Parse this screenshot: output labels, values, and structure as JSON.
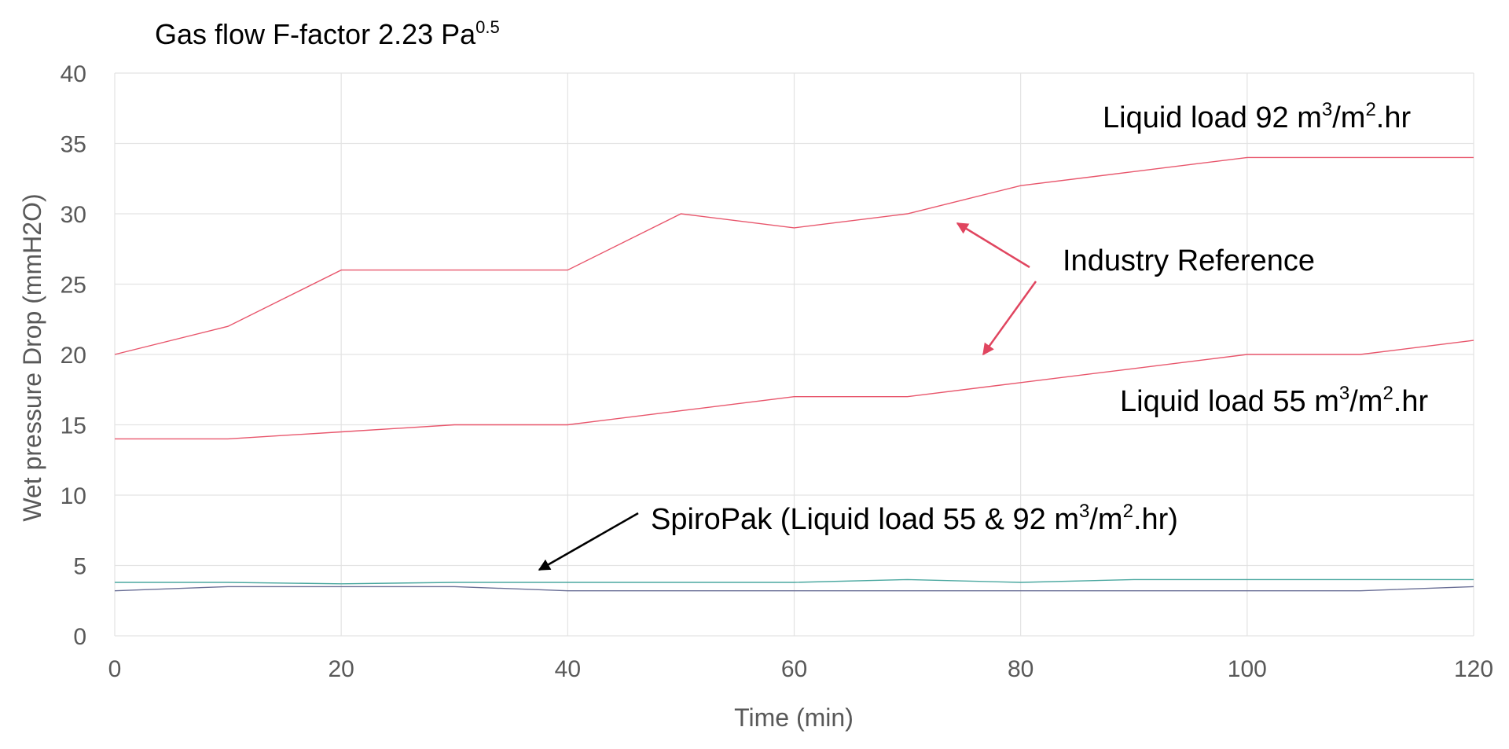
{
  "chart_data": {
    "type": "line",
    "title": "Gas flow F-factor 2.23 Pa",
    "title_sup": "0.5",
    "xlabel": "Time (min)",
    "ylabel": "Wet pressure Drop (mmH2O)",
    "xlim": [
      0,
      120
    ],
    "ylim": [
      0,
      40
    ],
    "x_ticks": [
      "0",
      "20",
      "40",
      "60",
      "80",
      "100",
      "120"
    ],
    "y_ticks": [
      "0",
      "5",
      "10",
      "15",
      "20",
      "25",
      "30",
      "35",
      "40"
    ],
    "grid": true,
    "x": [
      0,
      10,
      20,
      30,
      40,
      50,
      60,
      70,
      80,
      90,
      100,
      110,
      120
    ],
    "series": [
      {
        "values": [
          20,
          22,
          26,
          26,
          26,
          30,
          29,
          30,
          32,
          33,
          34,
          34,
          34
        ],
        "color": "#e8566c"
      },
      {
        "values": [
          14,
          14,
          14.5,
          15,
          15,
          16,
          17,
          17,
          18,
          19,
          20,
          20,
          21
        ],
        "color": "#e8566c"
      },
      {
        "values": [
          3.8,
          3.8,
          3.7,
          3.8,
          3.8,
          3.8,
          3.8,
          4.0,
          3.8,
          4.0,
          4.0,
          4.0,
          4.0
        ],
        "color": "#4ba8a0"
      },
      {
        "values": [
          3.2,
          3.5,
          3.5,
          3.5,
          3.2,
          3.2,
          3.2,
          3.2,
          3.2,
          3.2,
          3.2,
          3.2,
          3.5
        ],
        "color": "#6a6f96"
      }
    ],
    "annotations": {
      "liquid92": {
        "pre": "Liquid load 92 m",
        "sup1": "3",
        "mid": "/m",
        "sup2": "2",
        "post": ".hr"
      },
      "liquid55": {
        "pre": "Liquid load 55 m",
        "sup1": "3",
        "mid": "/m",
        "sup2": "2",
        "post": ".hr"
      },
      "industry": "Industry Reference",
      "spiropak": {
        "pre": "SpiroPak (Liquid load 55 & 92 m",
        "sup1": "3",
        "mid": "/m",
        "sup2": "2",
        "post": ".hr)"
      }
    },
    "arrow_colors": {
      "industry": "#e0455f",
      "spiropak": "#000000"
    }
  }
}
